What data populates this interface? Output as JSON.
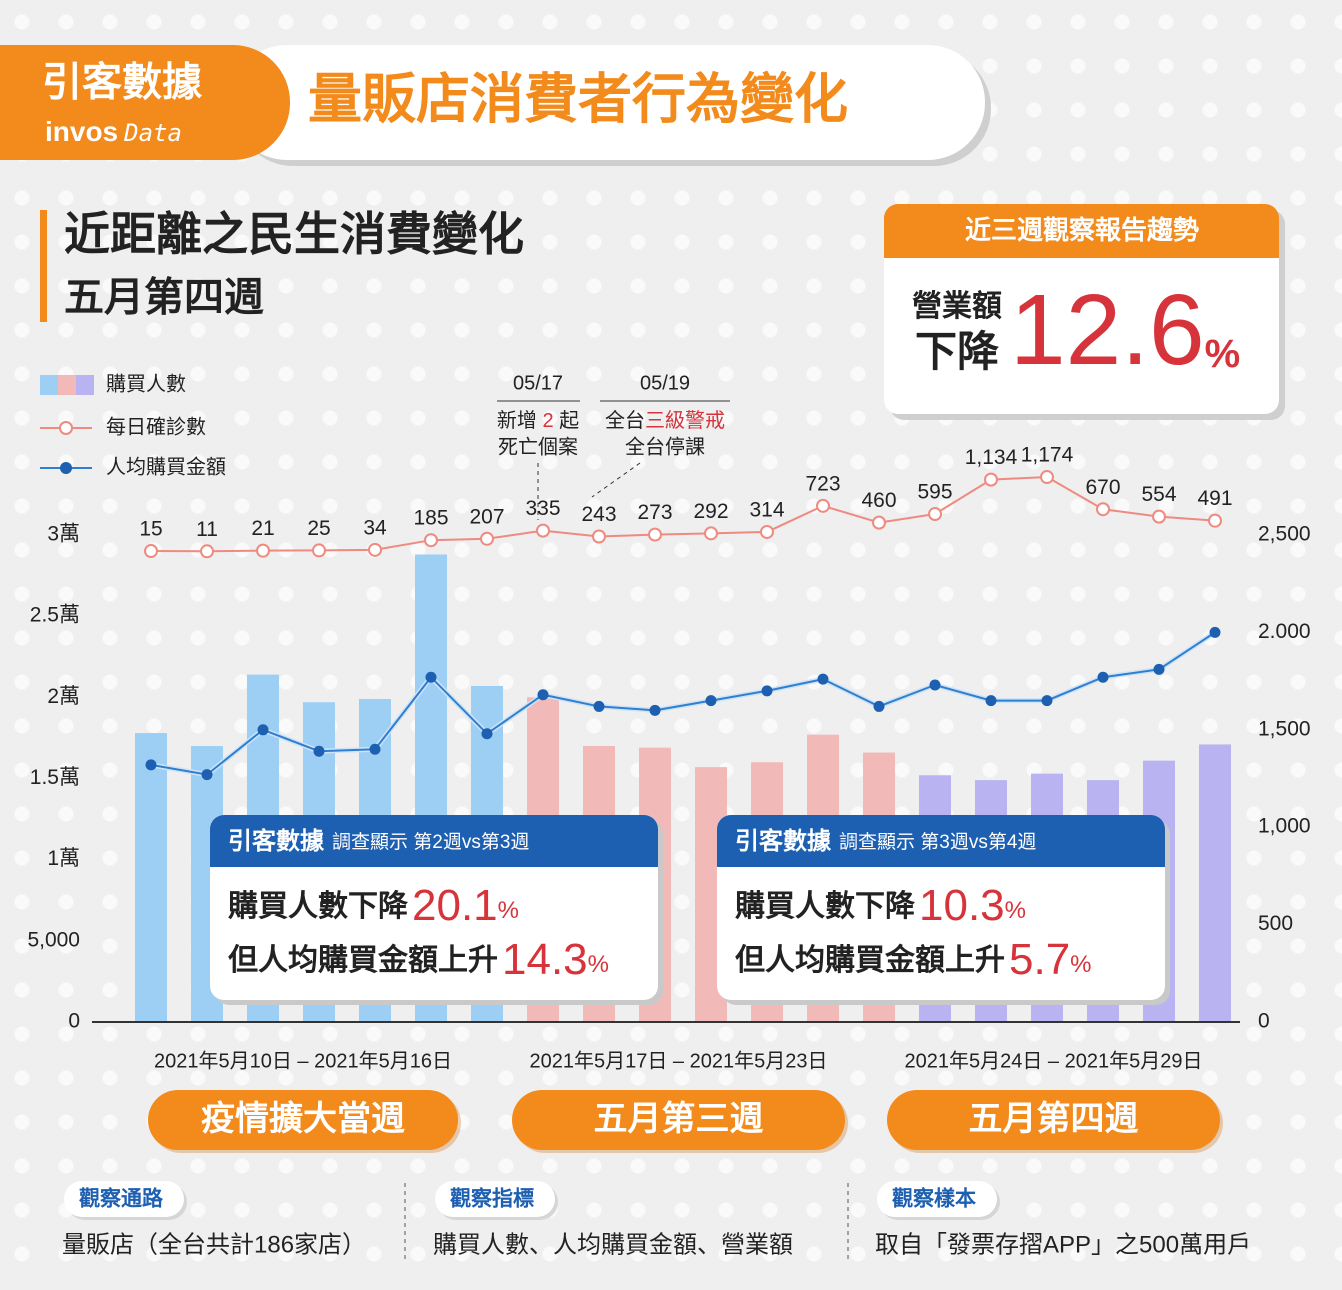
{
  "header": {
    "brand": "引客數據",
    "brand_en_1": "invos",
    "brand_en_2": "Data",
    "title": "量販店消費者行為變化"
  },
  "subtitle": {
    "line1": "近距離之民生消費變化",
    "line2": "五月第四週"
  },
  "report": {
    "title": "近三週觀察報告趨勢",
    "metric": "營業額",
    "direction": "下降",
    "value": "12.6",
    "unit": "%"
  },
  "chart_data": {
    "type": "combo",
    "ylim": [
      0,
      30000
    ],
    "yticks": [
      0,
      {
        "value": 5000,
        "label": "5,000"
      },
      {
        "value": 10000,
        "label": "1萬"
      },
      {
        "value": 15000,
        "label": "1.5萬"
      },
      {
        "value": 20000,
        "label": "2萬"
      },
      {
        "value": 25000,
        "label": "2.5萬"
      },
      {
        "value": 30000,
        "label": "3萬"
      }
    ],
    "y2lim": [
      0,
      2500
    ],
    "y2ticks": [
      0,
      500,
      {
        "value": 1000,
        "label": "1,000"
      },
      {
        "value": 1500,
        "label": "1,500"
      },
      {
        "value": 2000,
        "label": "2.000"
      },
      {
        "value": 2500,
        "label": "2,500"
      }
    ],
    "series": [
      {
        "name": "購買人數",
        "type": "bar",
        "colors": [
          "#9dcff5",
          "#9dcff5",
          "#9dcff5",
          "#9dcff5",
          "#9dcff5",
          "#9dcff5",
          "#9dcff5",
          "#f1b9b8",
          "#f1b9b8",
          "#f1b9b8",
          "#f1b9b8",
          "#f1b9b8",
          "#f1b9b8",
          "#f1b9b8",
          "#b9b3f2",
          "#b9b3f2",
          "#b9b3f2",
          "#b9b3f2",
          "#b9b3f2",
          "#b9b3f2"
        ],
        "values": [
          17800,
          17000,
          21400,
          19700,
          19900,
          28800,
          20700,
          20000,
          17000,
          16900,
          15700,
          16000,
          17700,
          16600,
          15200,
          14900,
          15300,
          14900,
          16100,
          17100
        ]
      },
      {
        "name": "每日確診數",
        "type": "line",
        "color": "#ee8a80",
        "ylim": [
          0,
          1200
        ],
        "values": [
          15,
          11,
          21,
          25,
          34,
          185,
          207,
          335,
          243,
          273,
          292,
          314,
          723,
          460,
          595,
          1134,
          1174,
          670,
          554,
          491
        ],
        "value_labels": [
          "15",
          "11",
          "21",
          "25",
          "34",
          "185",
          "207",
          "335",
          "243",
          "273",
          "292",
          "314",
          "723",
          "460",
          "595",
          "1,134",
          "1,174",
          "670",
          "554",
          "491"
        ]
      },
      {
        "name": "人均購買金額",
        "type": "line",
        "axis": "y2",
        "color": "#2f7fd0",
        "values": [
          1320,
          1270,
          1500,
          1390,
          1400,
          1770,
          1480,
          1680,
          1620,
          1600,
          1650,
          1700,
          1760,
          1620,
          1730,
          1650,
          1650,
          1770,
          1810,
          2000
        ]
      }
    ],
    "annotations": [
      {
        "date": "05/17",
        "line1": [
          "新增 ",
          "2",
          " 起"
        ],
        "line2": "死亡個案"
      },
      {
        "date": "05/19",
        "line1": [
          "全台",
          "三級警戒"
        ],
        "line2": "全台停課"
      }
    ],
    "periods": [
      {
        "range": "2021年5月10日 – 2021年5月16日",
        "name": "疫情擴大當週"
      },
      {
        "range": "2021年5月17日 – 2021年5月23日",
        "name": "五月第三週"
      },
      {
        "range": "2021年5月24日 – 2021年5月29日",
        "name": "五月第四週"
      }
    ]
  },
  "callouts": [
    {
      "brand": "引客數據",
      "note": "調查顯示 第2週vs第3週",
      "line1": "購買人數下降",
      "value1": "20.1",
      "line2": "但人均購買金額上升",
      "value2": "14.3",
      "unit": "%"
    },
    {
      "brand": "引客數據",
      "note": "調查顯示 第3週vs第4週",
      "line1": "購買人數下降",
      "value1": "10.3",
      "line2": "但人均購買金額上升",
      "value2": "5.7",
      "unit": "%"
    }
  ],
  "footer": [
    {
      "tag": "觀察通路",
      "text": "量販店（全台共計186家店）"
    },
    {
      "tag": "觀察指標",
      "text": "購買人數、人均購買金額、營業額"
    },
    {
      "tag": "觀察樣本",
      "text": "取自「發票存摺APP」之500萬用戶"
    }
  ]
}
